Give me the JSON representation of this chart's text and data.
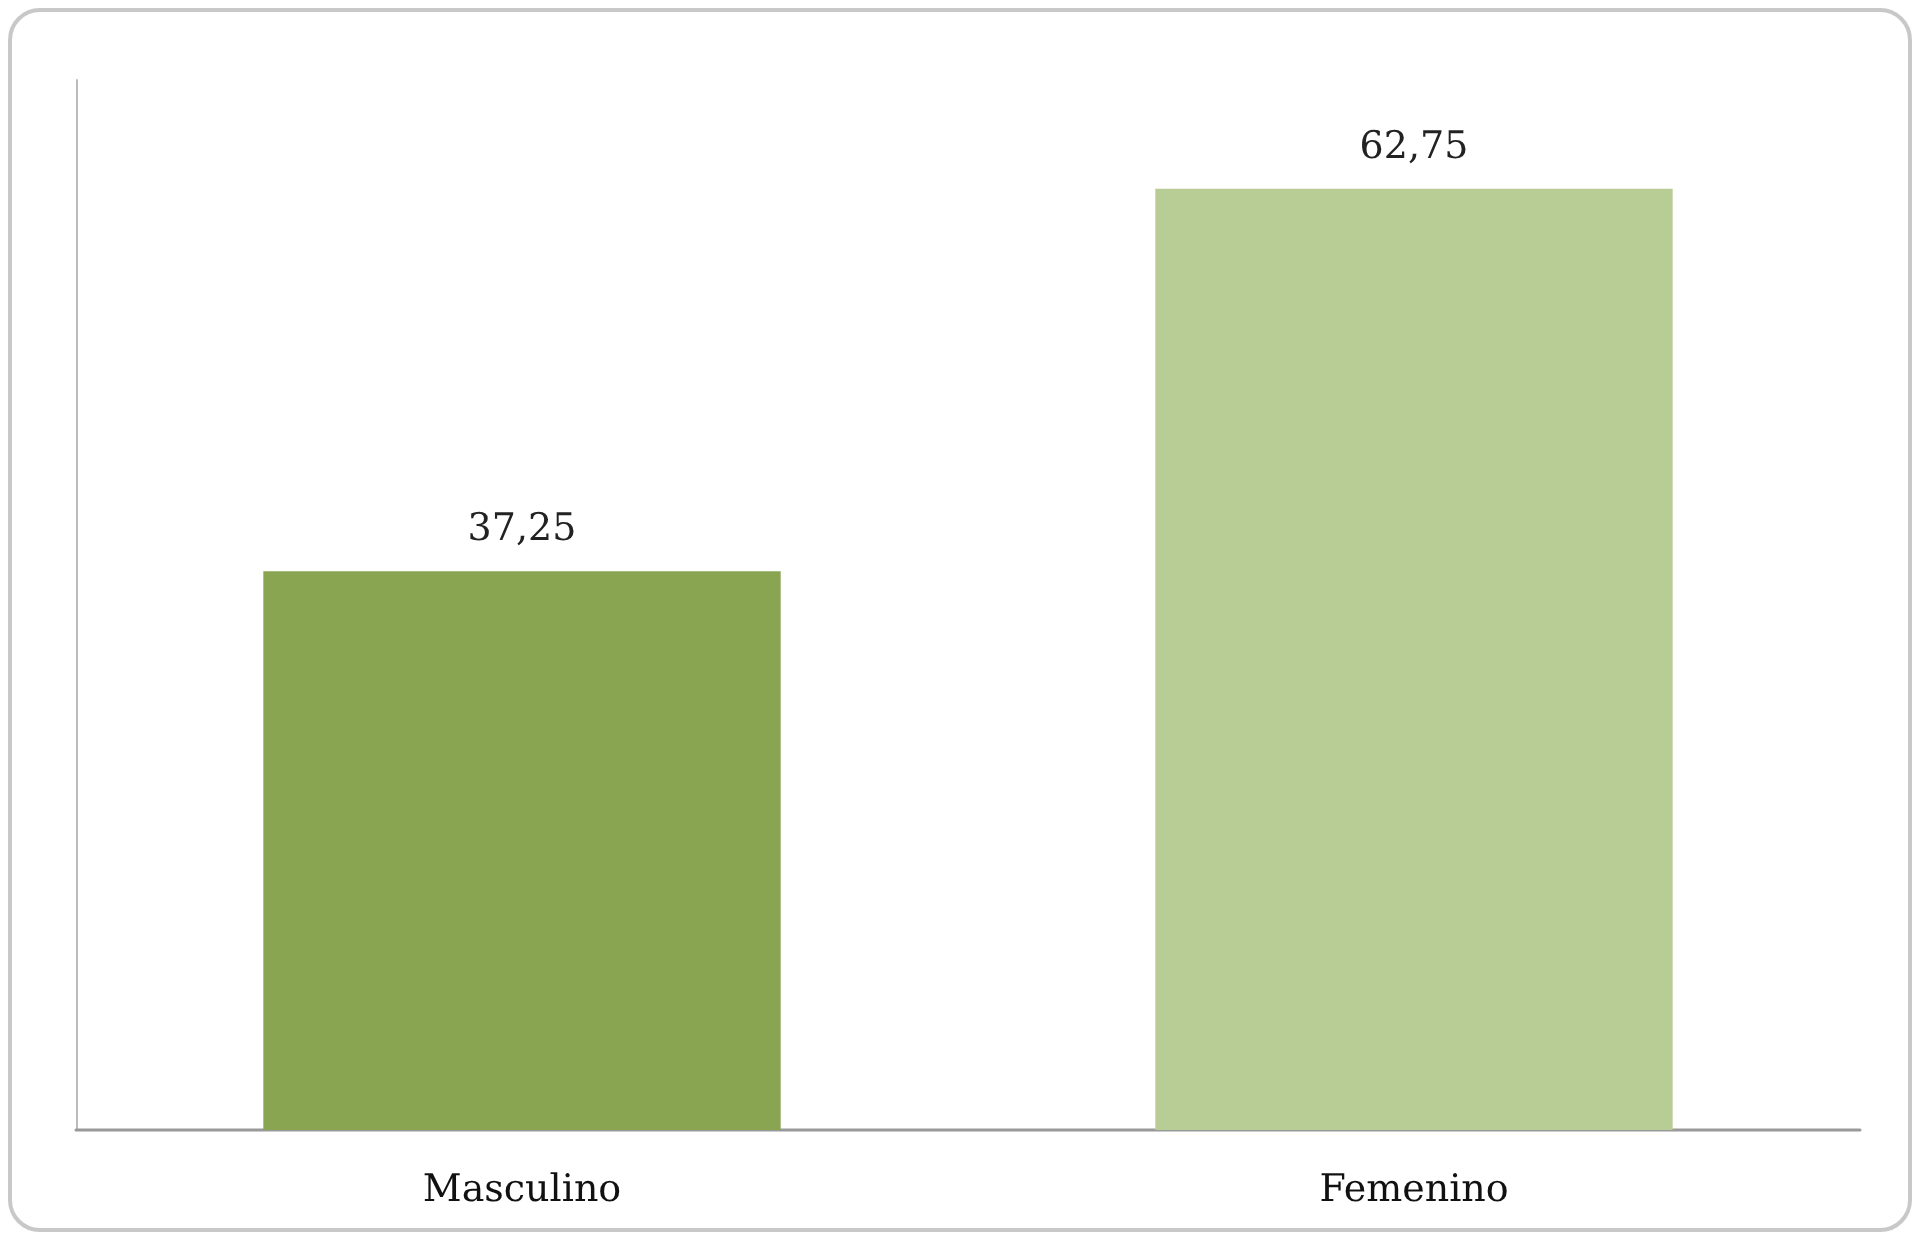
{
  "chart_data": {
    "type": "bar",
    "categories": [
      "Masculino",
      "Femenino"
    ],
    "values": [
      37.25,
      62.75
    ],
    "colors": [
      "#8aa552",
      "#b8cc95"
    ],
    "value_labels": [
      "37,25",
      "62,75"
    ],
    "tick_labels": "x"
  }
}
